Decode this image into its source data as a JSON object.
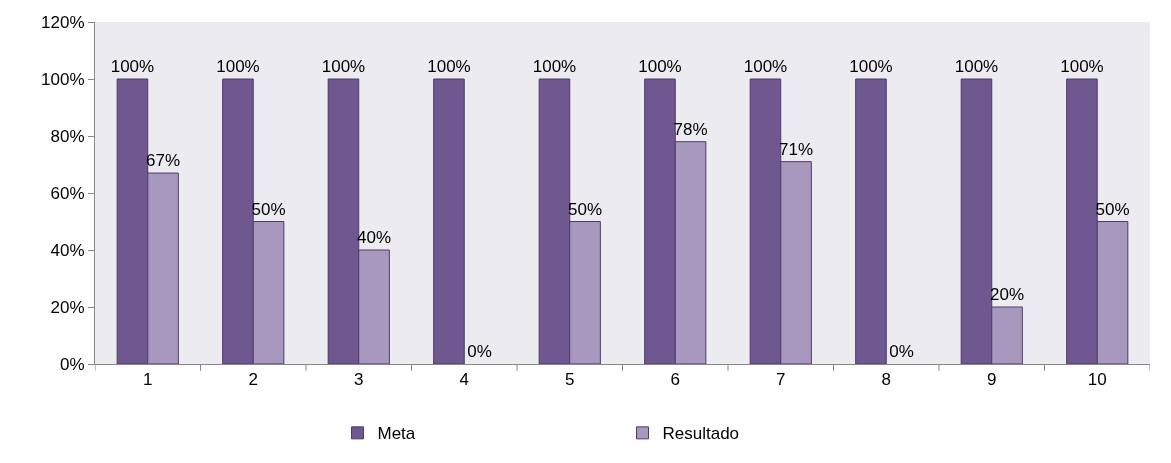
{
  "chart_data": {
    "type": "bar",
    "categories": [
      "1",
      "2",
      "3",
      "4",
      "5",
      "6",
      "7",
      "8",
      "9",
      "10"
    ],
    "series": [
      {
        "name": "Meta",
        "color": "#6f578f",
        "values": [
          100,
          100,
          100,
          100,
          100,
          100,
          100,
          100,
          100,
          100
        ],
        "value_labels": [
          "100%",
          "100%",
          "100%",
          "100%",
          "100%",
          "100%",
          "100%",
          "100%",
          "100%",
          "100%"
        ]
      },
      {
        "name": "Resultado",
        "color": "#a898be",
        "values": [
          67,
          50,
          40,
          0,
          50,
          78,
          71,
          0,
          20,
          50
        ],
        "value_labels": [
          "67%",
          "50%",
          "40%",
          "0%",
          "50%",
          "78%",
          "71%",
          "0%",
          "20%",
          "50%"
        ]
      }
    ],
    "ylim": [
      0,
      120
    ],
    "yticks": [
      {
        "value": 0,
        "label": "0%"
      },
      {
        "value": 20,
        "label": "20%"
      },
      {
        "value": 40,
        "label": "40%"
      },
      {
        "value": 60,
        "label": "60%"
      },
      {
        "value": 80,
        "label": "80%"
      },
      {
        "value": 100,
        "label": "100%"
      },
      {
        "value": 120,
        "label": "120%"
      }
    ],
    "grid": false,
    "legend": "bottom"
  }
}
